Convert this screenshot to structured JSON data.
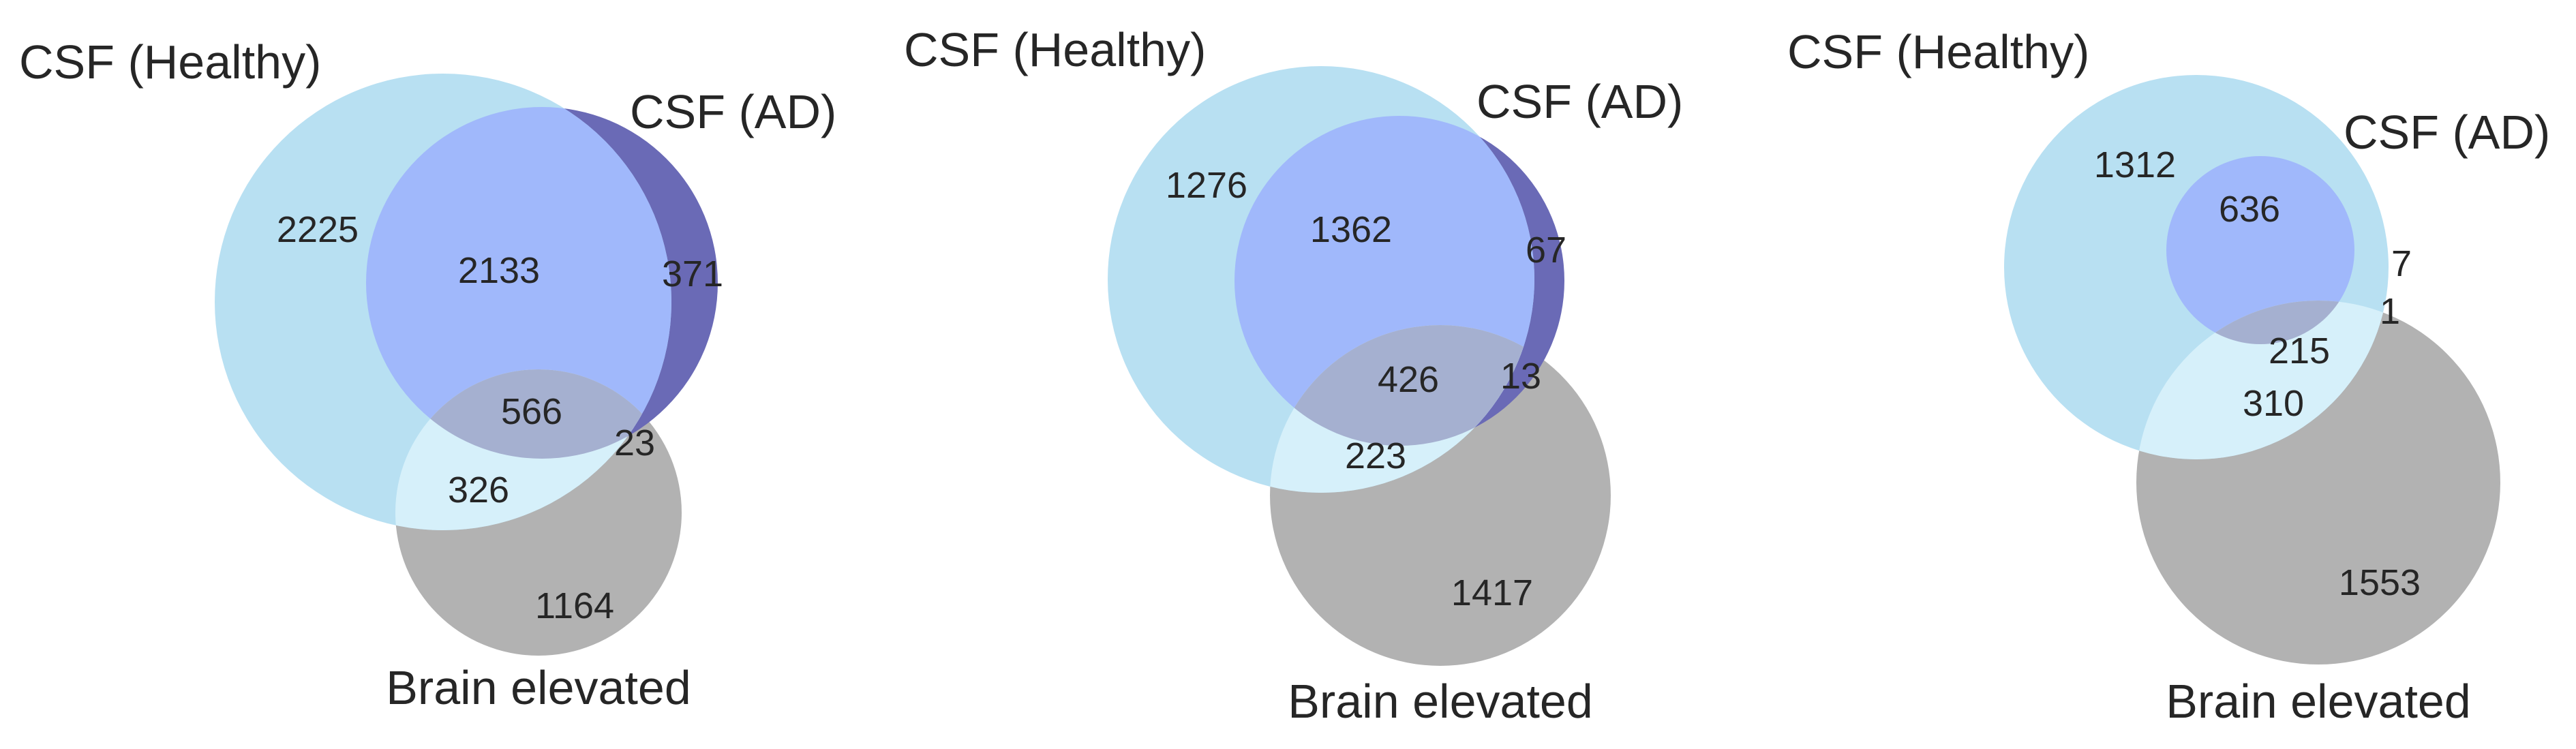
{
  "colors": {
    "healthy": "#b8e0f2",
    "healthy_only_brain": "#d6f0fa",
    "ad_overlap": "#a0b8fb",
    "ad_only": "#6a6ab6",
    "triple": "#a5b0d0",
    "brain": "#b2b2b2",
    "text": "#262626"
  },
  "diagrams": [
    {
      "labels": {
        "healthy": "CSF (Healthy)",
        "ad": "CSF (AD)",
        "brain": "Brain elevated"
      },
      "counts": {
        "healthy_only": "2225",
        "healthy_ad": "2133",
        "ad_only": "371",
        "triple": "566",
        "ad_brain": "23",
        "healthy_brain": "326",
        "brain_only": "1164"
      }
    },
    {
      "labels": {
        "healthy": "CSF (Healthy)",
        "ad": "CSF (AD)",
        "brain": "Brain elevated"
      },
      "counts": {
        "healthy_only": "1276",
        "healthy_ad": "1362",
        "ad_only": "67",
        "triple": "426",
        "ad_brain": "13",
        "healthy_brain": "223",
        "brain_only": "1417"
      }
    },
    {
      "labels": {
        "healthy": "CSF (Healthy)",
        "ad": "CSF (AD)",
        "brain": "Brain elevated"
      },
      "counts": {
        "healthy_only": "1312",
        "healthy_ad": "636",
        "ad_only": "7",
        "triple": "215",
        "ad_brain": "1",
        "healthy_brain": "310",
        "brain_only": "1553"
      }
    }
  ]
}
